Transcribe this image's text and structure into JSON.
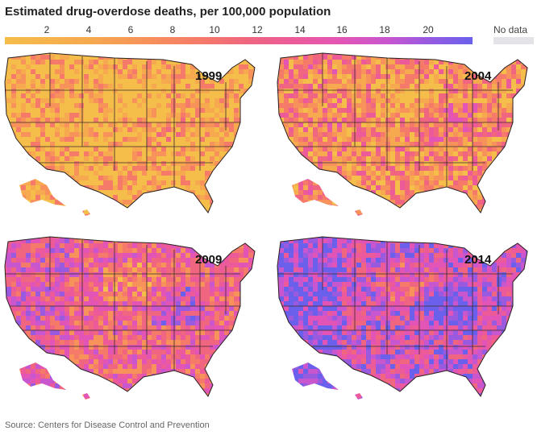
{
  "title": "Estimated drug-overdose deaths, per 100,000 population",
  "legend": {
    "ticks": [
      "2",
      "4",
      "6",
      "8",
      "10",
      "12",
      "14",
      "16",
      "18",
      "20"
    ],
    "no_data": "No data"
  },
  "maps": [
    {
      "year": "1999"
    },
    {
      "year": "2004"
    },
    {
      "year": "2009"
    },
    {
      "year": "2014"
    }
  ],
  "source": "Source: Centers for Disease Control and Prevention",
  "colors": {
    "low": "#f5bd4a",
    "mid": "#f06580",
    "high": "#6a60ec",
    "no_data": "#e3e3e8"
  }
}
